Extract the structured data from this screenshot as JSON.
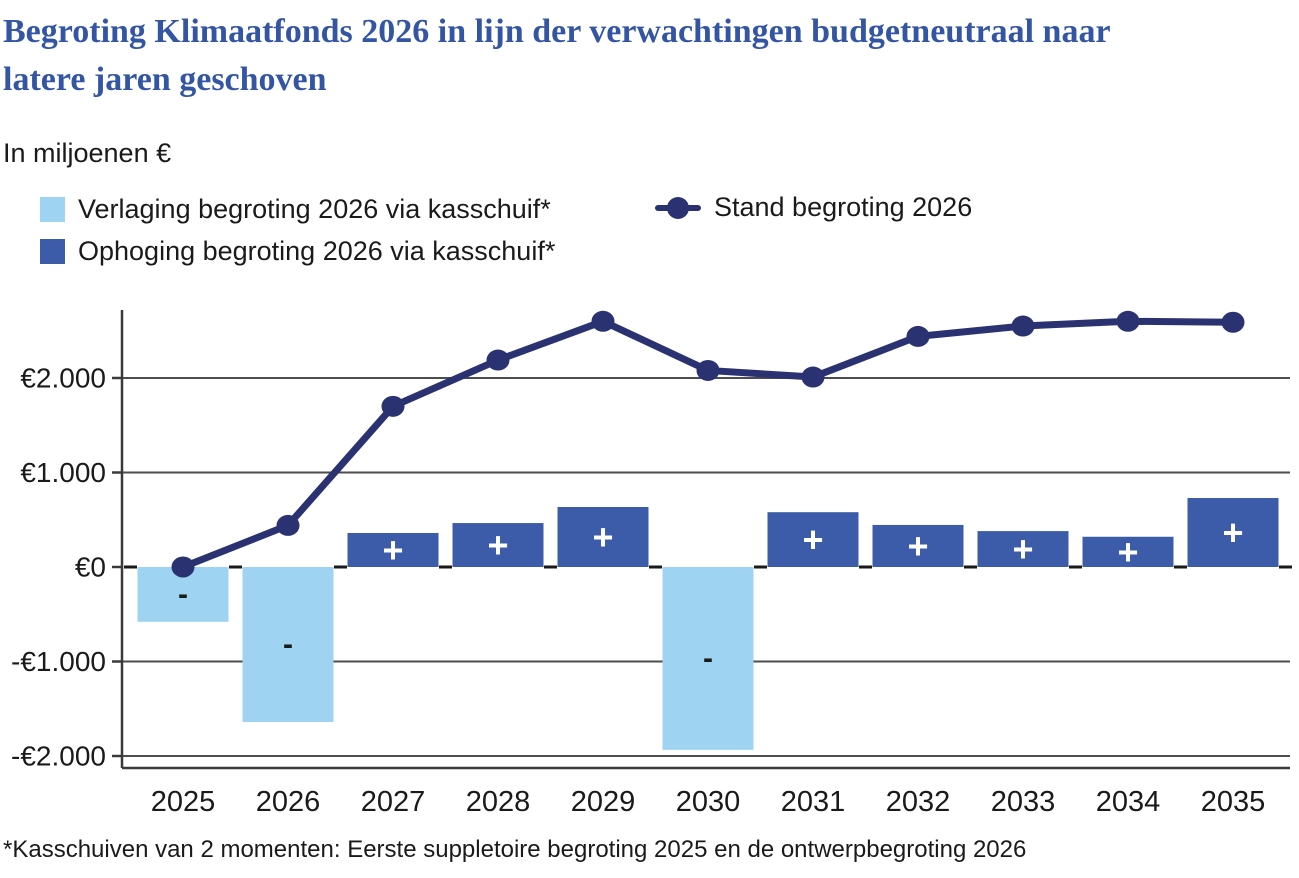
{
  "page": {
    "title_lines": [
      "Begroting Klimaatfonds 2026 in lijn der verwachtingen budgetneutraal naar",
      "latere jaren geschoven"
    ],
    "unit_label": "In miljoenen €",
    "footnote": "*Kasschuiven van 2 momenten: Eerste suppletoire begroting 2025 en de ontwerpbegroting 2026"
  },
  "colors": {
    "title": "#3355a4",
    "text": "#1a1a1a",
    "grid": "#4d4d50",
    "axis": "#3a3a3d",
    "light_blue": "#9ed3f2",
    "dark_blue": "#3c5ba8",
    "navy_line": "#2b3271"
  },
  "legend": {
    "items": [
      {
        "type": "square",
        "color": "#9ed3f2",
        "label": "Verlaging begroting 2026 via kasschuif*"
      },
      {
        "type": "square",
        "color": "#3c5ba8",
        "label": "Ophoging begroting 2026 via kasschuif*"
      },
      {
        "type": "line-marker",
        "color": "#2b3271",
        "label": "Stand begroting 2026"
      }
    ]
  },
  "chart_data": {
    "type": "bar+line",
    "title": "Begroting Klimaatfonds 2026 in lijn der verwachtingen budgetneutraal naar latere jaren geschoven",
    "ylabel": "In miljoenen €",
    "xlabel": "",
    "grid": true,
    "legend_position": "top-left",
    "categories": [
      "2025",
      "2026",
      "2027",
      "2028",
      "2029",
      "2030",
      "2031",
      "2032",
      "2033",
      "2034",
      "2035"
    ],
    "series": [
      {
        "name": "Verlaging begroting 2026 via kasschuif*",
        "type": "bar",
        "color": "#9ed3f2",
        "sign_label": "-",
        "sign_label_color": "#1a1a1a",
        "values": [
          -580,
          -1640,
          null,
          null,
          null,
          -1935,
          null,
          null,
          null,
          null,
          null
        ]
      },
      {
        "name": "Ophoging begroting 2026 via kasschuif*",
        "type": "bar",
        "color": "#3c5ba8",
        "sign_label": "+",
        "sign_label_color": "#ffffff",
        "values": [
          null,
          null,
          360,
          465,
          635,
          null,
          580,
          445,
          380,
          320,
          730
        ]
      },
      {
        "name": "Stand begroting 2026",
        "type": "line",
        "color": "#2b3271",
        "values": [
          0,
          440,
          1700,
          2190,
          2600,
          2080,
          2010,
          2440,
          2550,
          2600,
          2590
        ]
      }
    ],
    "yticks": [
      {
        "label": "€2.000",
        "value": 2000
      },
      {
        "label": "€1.000",
        "value": 1000
      },
      {
        "label": "€0",
        "value": 0
      },
      {
        "label": "-€1.000",
        "value": -1000
      },
      {
        "label": "-€2.000",
        "value": -2000
      }
    ],
    "ylim": [
      -2130,
      2720
    ]
  }
}
